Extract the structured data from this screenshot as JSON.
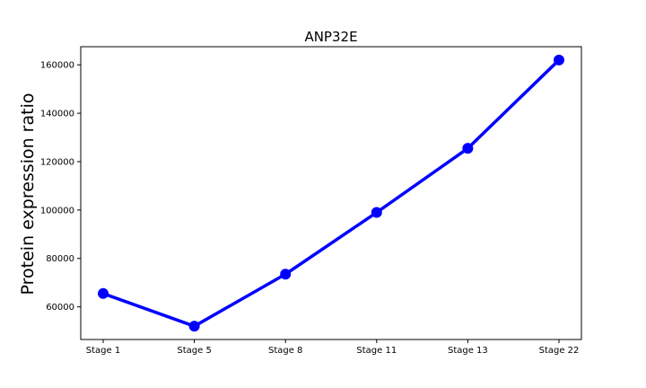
{
  "chart_data": {
    "type": "line",
    "title": "ANP32E",
    "xlabel": "",
    "ylabel": "Protein expression ratio",
    "categories": [
      "Stage 1",
      "Stage 5",
      "Stage 8",
      "Stage 11",
      "Stage 13",
      "Stage 22"
    ],
    "series": [
      {
        "name": "ANP32E",
        "values": [
          65500,
          52000,
          73500,
          99000,
          125500,
          162000
        ],
        "color": "#0000ff"
      }
    ],
    "yticks": [
      60000,
      80000,
      100000,
      120000,
      140000,
      160000
    ],
    "ytick_labels": [
      "60000",
      "80000",
      "100000",
      "120000",
      "140000",
      "160000"
    ],
    "ylim": [
      46500,
      167500
    ],
    "grid": false,
    "legend": "none"
  }
}
